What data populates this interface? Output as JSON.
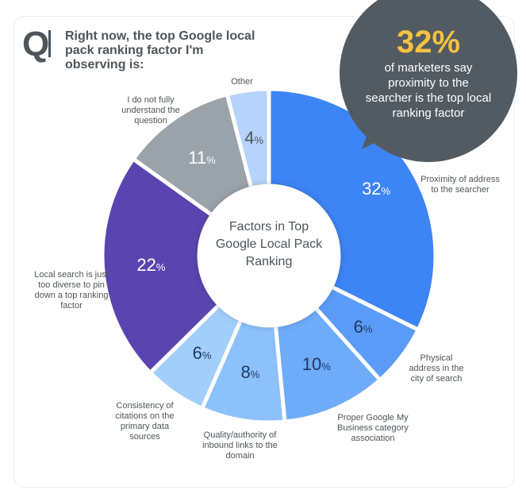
{
  "header": {
    "q_mark": "Q",
    "title": "Right now, the top Google local pack ranking factor I'm observing is:"
  },
  "callout": {
    "stat": "32%",
    "text": "of marketers say proximity to the searcher is the top local ranking factor"
  },
  "chart_data": {
    "type": "pie",
    "title": "Factors in Top Google Local Pack Ranking",
    "categories": [
      "Proximity of address to the searcher",
      "Physical address in the city of search",
      "Proper Google My Business category association",
      "Quality/authority of inbound links to the domain",
      "Consistency of citations on the primary data sources",
      "Local search is just too diverse to pin down a top ranking factor",
      "I do not fully understand the question",
      "Other"
    ],
    "values": [
      32,
      6,
      10,
      8,
      6,
      22,
      11,
      4
    ],
    "colors": [
      "#3d84f5",
      "#5b9bf7",
      "#6eabf8",
      "#8cc1fb",
      "#a2cefb",
      "#5a45b0",
      "#9aa3aa",
      "#b5d3fb"
    ],
    "value_labels": [
      "32",
      "6",
      "10",
      "8",
      "6",
      "22",
      "11",
      "4"
    ],
    "pct_colors": [
      "#fff",
      "#1e3a66",
      "#1e3a66",
      "#1e3a66",
      "#1e3a66",
      "#fff",
      "#fff",
      "#4e555b"
    ],
    "unit": "%"
  }
}
